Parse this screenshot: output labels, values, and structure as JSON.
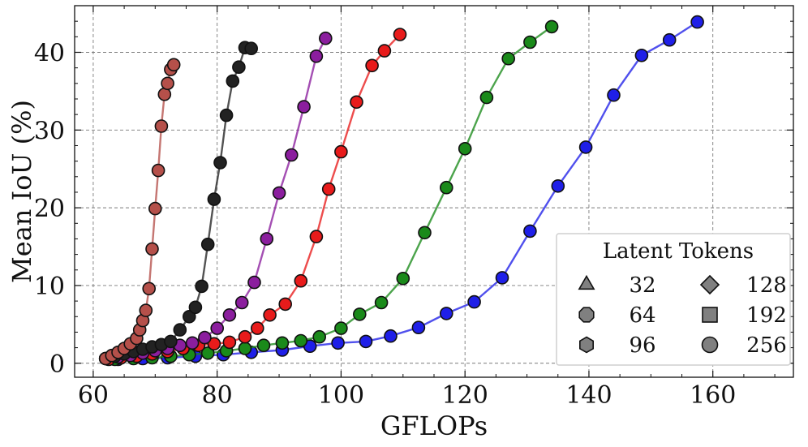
{
  "chart_data": {
    "type": "line",
    "title": "",
    "xlabel": "GFLOPs",
    "ylabel": "Mean IoU (%)",
    "xlim": [
      57,
      173
    ],
    "ylim": [
      -1.8,
      46
    ],
    "xticks": [
      60,
      80,
      100,
      120,
      140,
      160
    ],
    "yticks": [
      0,
      10,
      20,
      30,
      40
    ],
    "grid": true,
    "series": [
      {
        "name": "256 (blue)",
        "color": "#1f1fe8",
        "x": [
          64,
          68,
          72,
          76.5,
          81,
          85.5,
          90.5,
          95,
          99.5,
          104,
          108,
          112.5,
          117,
          121.5,
          126,
          130.5,
          135,
          139.5,
          144,
          148.5,
          153,
          157.5
        ],
        "y": [
          0.5,
          0.6,
          0.7,
          0.9,
          1.1,
          1.4,
          1.7,
          2.2,
          2.6,
          2.8,
          3.5,
          4.6,
          6.4,
          7.9,
          11.0,
          17.0,
          22.8,
          27.8,
          34.5,
          39.6,
          41.6,
          43.9
        ]
      },
      {
        "name": "192 (green)",
        "color": "#1a8a1a",
        "x": [
          63.5,
          66.5,
          69.5,
          72.5,
          75.5,
          78.5,
          81.5,
          84.5,
          87.5,
          90.5,
          93.5,
          96.5,
          100,
          103,
          106.5,
          110,
          113.5,
          117,
          120,
          123.5,
          127,
          130.5,
          134
        ],
        "y": [
          0.5,
          0.6,
          0.7,
          0.9,
          1.1,
          1.3,
          1.6,
          1.9,
          2.3,
          2.6,
          2.9,
          3.4,
          4.5,
          6.3,
          7.8,
          10.9,
          16.8,
          22.6,
          27.6,
          34.2,
          39.2,
          41.3,
          43.3
        ]
      },
      {
        "name": "128 (red)",
        "color": "#e81b1b",
        "x": [
          62.5,
          64.5,
          67,
          69.5,
          72,
          74.5,
          77,
          79.5,
          82,
          84.5,
          86.5,
          88.5,
          91,
          93.5,
          96,
          98,
          100,
          102.5,
          105,
          107,
          109.5
        ],
        "y": [
          0.5,
          0.7,
          0.9,
          1.2,
          1.5,
          1.9,
          2.3,
          2.5,
          2.7,
          3.4,
          4.5,
          6.2,
          7.6,
          10.6,
          16.3,
          22.4,
          27.2,
          33.6,
          38.3,
          40.2,
          42.3
        ]
      },
      {
        "name": "96 (purple)",
        "color": "#8b1e9e",
        "x": [
          62,
          64,
          66,
          68,
          70,
          72,
          74,
          76,
          78,
          80,
          82,
          84,
          86,
          88,
          90,
          92,
          94,
          96,
          97.5
        ],
        "y": [
          0.6,
          0.8,
          1.0,
          1.3,
          1.6,
          1.9,
          2.3,
          2.6,
          3.3,
          4.5,
          6.2,
          7.8,
          10.4,
          16.0,
          21.9,
          26.8,
          33.0,
          39.5,
          41.8
        ]
      },
      {
        "name": "64 (black)",
        "color": "#222222",
        "x": [
          62,
          63.5,
          65,
          66.5,
          68,
          69.5,
          71,
          72.5,
          74,
          75.5,
          76.5,
          77.5,
          78.5,
          79.5,
          80.5,
          81.5,
          82.5,
          83.5,
          84.5,
          85.5
        ],
        "y": [
          0.6,
          0.9,
          1.2,
          1.5,
          1.8,
          2.1,
          2.4,
          2.8,
          4.3,
          6.0,
          7.2,
          9.9,
          15.3,
          21.1,
          25.8,
          31.9,
          36.3,
          38.1,
          40.6,
          40.5
        ]
      },
      {
        "name": "32 (brown)",
        "color": "#b5504a",
        "x": [
          62,
          63,
          64,
          65,
          66,
          67,
          67.5,
          68,
          68.5,
          69,
          69.5,
          70,
          70.5,
          71,
          71.5,
          72,
          72.5,
          73
        ],
        "y": [
          0.6,
          1.0,
          1.4,
          1.9,
          2.5,
          3.2,
          4.3,
          5.5,
          6.8,
          9.6,
          14.7,
          19.9,
          24.8,
          30.5,
          34.6,
          36.0,
          37.8,
          38.4
        ]
      }
    ],
    "legend": {
      "title": "Latent Tokens",
      "position": "bottom-right",
      "entries": [
        {
          "label": "32",
          "marker": "triangle"
        },
        {
          "label": "128",
          "marker": "diamond"
        },
        {
          "label": "64",
          "marker": "octagon"
        },
        {
          "label": "192",
          "marker": "square"
        },
        {
          "label": "96",
          "marker": "hexagon"
        },
        {
          "label": "256",
          "marker": "circle"
        }
      ]
    }
  }
}
